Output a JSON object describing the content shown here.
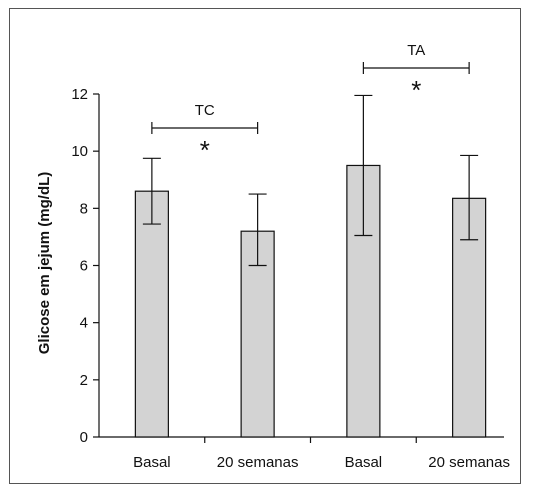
{
  "chart_data": {
    "type": "bar",
    "title": "",
    "xlabel": "",
    "ylabel": "Glicose em jejum (mg/dL)",
    "ylim": [
      0,
      12
    ],
    "yticks": [
      0,
      2,
      4,
      6,
      8,
      10,
      12
    ],
    "categories": [
      "Basal",
      "20 semanas",
      "Basal",
      "20 semanas"
    ],
    "values": [
      8.6,
      7.2,
      9.5,
      8.35
    ],
    "error_low": [
      7.45,
      6.0,
      7.05,
      6.9
    ],
    "error_high": [
      9.75,
      8.5,
      11.95,
      9.85
    ],
    "bar_color": "#d3d3d3",
    "grid": false,
    "annotations": [
      {
        "label": "TC",
        "bracket": [
          0,
          1
        ],
        "marker": "*"
      },
      {
        "label": "TA",
        "bracket": [
          2,
          3
        ],
        "marker": "*"
      }
    ]
  }
}
